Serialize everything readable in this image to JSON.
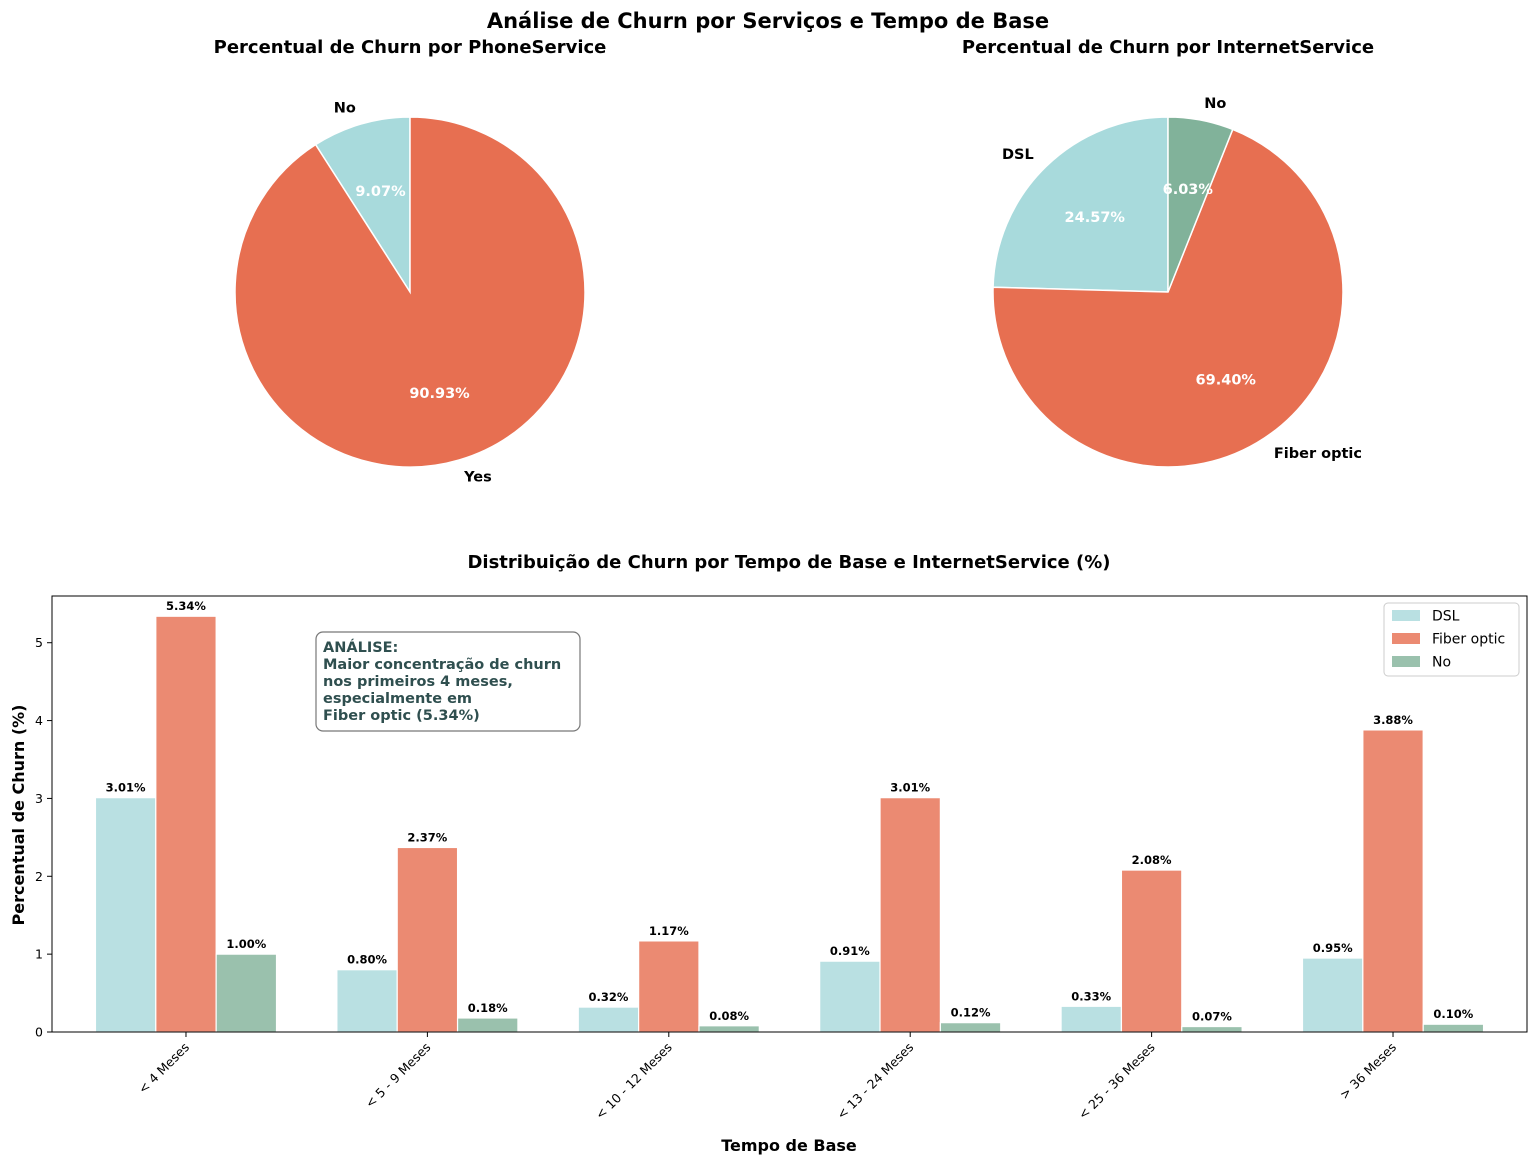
{
  "suptitle": "Análise de Churn por Serviços e Tempo de Base",
  "colors": {
    "dsl": "#a8dadc",
    "fiber": "#e76f51",
    "no": "#81b29a",
    "bar_dsl": "#b9e0e2",
    "bar_fiber": "#eb8a72",
    "bar_no": "#9ac1ad"
  },
  "chart_data": [
    {
      "type": "pie",
      "title": "Percentual de Churn por PhoneService",
      "labels": [
        "No",
        "Yes"
      ],
      "values": [
        9.07,
        90.93
      ],
      "pct_labels": [
        "9.07%",
        "90.93%"
      ],
      "colors": [
        "#a8dadc",
        "#e76f51"
      ]
    },
    {
      "type": "pie",
      "title": "Percentual de Churn por InternetService",
      "labels": [
        "DSL",
        "Fiber optic",
        "No"
      ],
      "values": [
        24.57,
        69.4,
        6.03
      ],
      "pct_labels": [
        "24.57%",
        "69.40%",
        "6.03%"
      ],
      "colors": [
        "#a8dadc",
        "#e76f51",
        "#81b29a"
      ]
    },
    {
      "type": "bar",
      "title": "Distribuição de Churn por Tempo de Base e InternetService (%)",
      "xlabel": "Tempo de Base",
      "ylabel": "Percentual de Churn (%)",
      "categories": [
        "< 4 Meses",
        "< 5 - 9 Meses",
        "< 10 - 12 Meses",
        "< 13 - 24 Meses",
        "< 25 - 36 Meses",
        "> 36 Meses"
      ],
      "series": [
        {
          "name": "DSL",
          "values": [
            3.01,
            0.8,
            0.32,
            0.91,
            0.33,
            0.95
          ],
          "labels": [
            "3.01%",
            "0.80%",
            "0.32%",
            "0.91%",
            "0.33%",
            "0.95%"
          ]
        },
        {
          "name": "Fiber optic",
          "values": [
            5.34,
            2.37,
            1.17,
            3.01,
            2.08,
            3.88
          ],
          "labels": [
            "5.34%",
            "2.37%",
            "1.17%",
            "3.01%",
            "2.08%",
            "3.88%"
          ]
        },
        {
          "name": "No",
          "values": [
            1.0,
            0.18,
            0.08,
            0.12,
            0.07,
            0.1
          ],
          "labels": [
            "1.00%",
            "0.18%",
            "0.08%",
            "0.12%",
            "0.07%",
            "0.10%"
          ]
        }
      ],
      "yticks": [
        0,
        1,
        2,
        3,
        4,
        5
      ],
      "ylim": [
        0,
        5.6
      ],
      "legend_position": "top-right",
      "annotation": [
        "ANÁLISE:",
        "Maior concentração de churn",
        "nos primeiros 4 meses,",
        "especialmente em",
        "Fiber optic (5.34%)"
      ]
    }
  ]
}
